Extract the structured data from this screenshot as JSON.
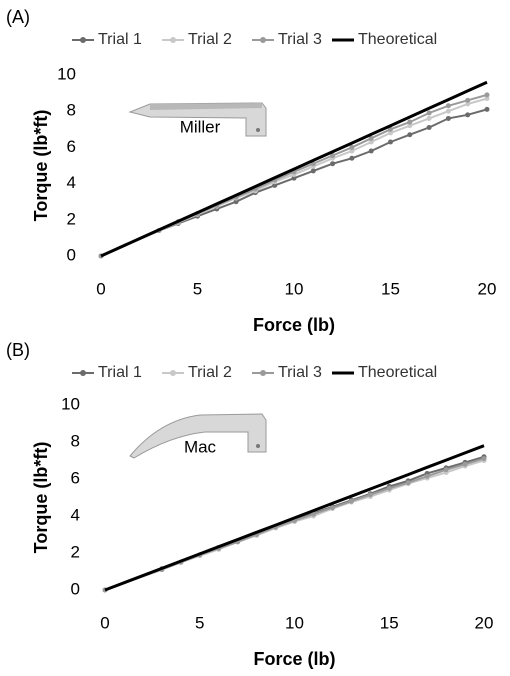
{
  "chart_data": [
    {
      "type": "line",
      "label": "(A)",
      "image_label": "Miller",
      "x_label": "Force (lb)",
      "y_label": "Torque (lb*ft)",
      "x": [
        0,
        3,
        4,
        5,
        6,
        7,
        8,
        9,
        10,
        11,
        12,
        13,
        14,
        15,
        16,
        17,
        18,
        19,
        20
      ],
      "xlim": [
        0,
        20
      ],
      "xticks": [
        0,
        5,
        10,
        15,
        20
      ],
      "ylim": [
        0,
        10
      ],
      "yticks": [
        0,
        2,
        4,
        6,
        8,
        10
      ],
      "series": [
        {
          "name": "Trial 1",
          "color": "#6b6b6b",
          "values": [
            0,
            1.4,
            1.8,
            2.2,
            2.6,
            3.0,
            3.5,
            3.9,
            4.3,
            4.7,
            5.1,
            5.4,
            5.8,
            6.3,
            6.7,
            7.1,
            7.6,
            7.8,
            8.1
          ]
        },
        {
          "name": "Trial 2",
          "color": "#c8c8c8",
          "values": [
            0,
            1.4,
            1.85,
            2.3,
            2.75,
            3.2,
            3.6,
            4.1,
            4.5,
            4.95,
            5.4,
            5.8,
            6.3,
            6.8,
            7.2,
            7.6,
            8.0,
            8.4,
            8.7
          ]
        },
        {
          "name": "Trial 3",
          "color": "#9a9a9a",
          "values": [
            0,
            1.4,
            1.9,
            2.35,
            2.8,
            3.25,
            3.7,
            4.2,
            4.65,
            5.1,
            5.55,
            6.0,
            6.5,
            7.0,
            7.4,
            7.9,
            8.3,
            8.6,
            8.9
          ]
        },
        {
          "name": "Theoretical",
          "color": "#000000",
          "values": [
            0,
            1.44,
            1.92,
            2.4,
            2.88,
            3.36,
            3.84,
            4.32,
            4.8,
            5.28,
            5.76,
            6.24,
            6.72,
            7.2,
            7.68,
            8.16,
            8.64,
            9.12,
            9.6
          ]
        }
      ]
    },
    {
      "type": "line",
      "label": "(B)",
      "image_label": "Mac",
      "x_label": "Force (lb)",
      "y_label": "Torque (lb*ft)",
      "x": [
        0,
        3,
        4,
        5,
        6,
        7,
        8,
        9,
        10,
        11,
        12,
        13,
        14,
        15,
        16,
        17,
        18,
        19,
        20
      ],
      "xlim": [
        0,
        20
      ],
      "xticks": [
        0,
        5,
        10,
        15,
        20
      ],
      "ylim": [
        0,
        10
      ],
      "yticks": [
        0,
        2,
        4,
        6,
        8,
        10
      ],
      "series": [
        {
          "name": "Trial 1",
          "color": "#6b6b6b",
          "values": [
            0,
            1.15,
            1.5,
            1.9,
            2.3,
            2.65,
            3.05,
            3.4,
            3.8,
            4.15,
            4.5,
            4.85,
            5.2,
            5.6,
            5.9,
            6.3,
            6.6,
            6.9,
            7.2
          ]
        },
        {
          "name": "Trial 2",
          "color": "#c8c8c8",
          "values": [
            0,
            1.1,
            1.5,
            1.85,
            2.2,
            2.6,
            2.95,
            3.35,
            3.7,
            4.0,
            4.4,
            4.75,
            5.05,
            5.4,
            5.75,
            6.05,
            6.35,
            6.7,
            7.0
          ]
        },
        {
          "name": "Trial 3",
          "color": "#9a9a9a",
          "values": [
            0,
            1.1,
            1.5,
            1.9,
            2.25,
            2.6,
            3.0,
            3.4,
            3.75,
            4.1,
            4.45,
            4.8,
            5.15,
            5.5,
            5.8,
            6.15,
            6.5,
            6.8,
            7.1
          ]
        },
        {
          "name": "Theoretical",
          "color": "#000000",
          "values": [
            0,
            1.17,
            1.56,
            1.95,
            2.34,
            2.73,
            3.12,
            3.51,
            3.9,
            4.29,
            4.68,
            5.07,
            5.46,
            5.85,
            6.24,
            6.63,
            7.02,
            7.41,
            7.8
          ]
        }
      ]
    }
  ]
}
